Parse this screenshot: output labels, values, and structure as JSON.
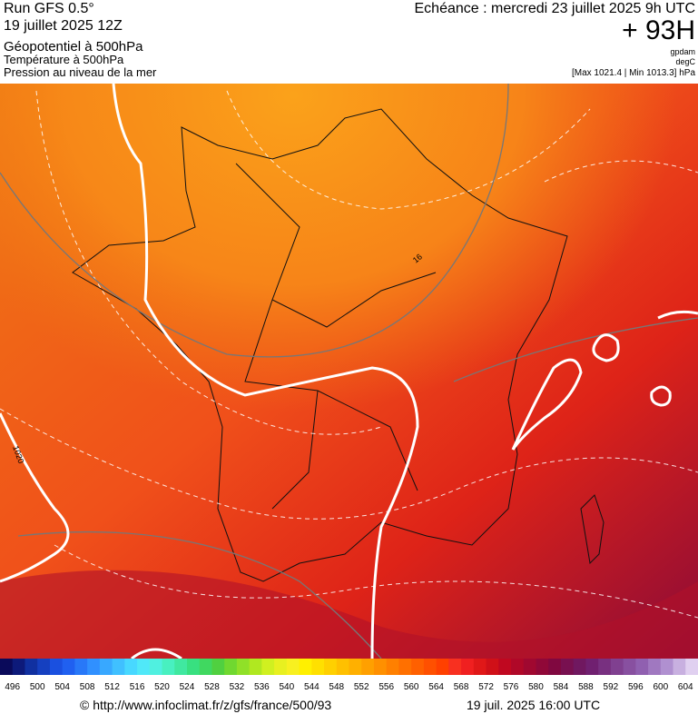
{
  "header": {
    "run": "Run GFS 0.5°",
    "date": "19 juillet 2025 12Z",
    "field1": "Géopotentiel à 500hPa",
    "field2": "Température à 500hPa",
    "field3": "Pression au niveau de la mer",
    "valid": "Echéance : mercredi 23 juillet 2025 9h UTC",
    "lead": "+ 93H",
    "unit1": "gpdam",
    "unit2": "degC",
    "range": "[Max 1021.4 | Min 1013.3] hPa"
  },
  "map": {
    "contour_labels": [
      "16",
      "1020"
    ]
  },
  "scale": {
    "labels": [
      496,
      500,
      504,
      508,
      512,
      516,
      520,
      524,
      528,
      532,
      536,
      540,
      544,
      548,
      552,
      556,
      560,
      564,
      568,
      572,
      576,
      580,
      584,
      588,
      592,
      596,
      600,
      604
    ],
    "colors": [
      "#0a0a5a",
      "#0d1a7a",
      "#1030a0",
      "#1540c0",
      "#1a50e0",
      "#2060f0",
      "#2878f8",
      "#3090ff",
      "#38a8ff",
      "#40c0ff",
      "#48d8ff",
      "#50e8f8",
      "#50f0e0",
      "#48f0c0",
      "#40e8a0",
      "#38e080",
      "#40d860",
      "#50d040",
      "#70d830",
      "#90e028",
      "#b0e820",
      "#d0f020",
      "#e8f020",
      "#f8f020",
      "#fff000",
      "#ffe000",
      "#ffd000",
      "#ffc000",
      "#ffb000",
      "#ffa000",
      "#ff9000",
      "#ff8000",
      "#ff7000",
      "#ff6000",
      "#ff5000",
      "#ff4000",
      "#f83020",
      "#f02020",
      "#e01818",
      "#d01018",
      "#c00820",
      "#b00828",
      "#a00830",
      "#900838",
      "#800840",
      "#781050",
      "#701860",
      "#702070",
      "#783080",
      "#804090",
      "#8850a0",
      "#9060b0",
      "#a078c0",
      "#b090d0",
      "#c8b0e0",
      "#e0d0f0"
    ]
  },
  "footer": {
    "url": "© http://www.infoclimat.fr/z/gfs/france/500/93",
    "generated": "19 juil. 2025 16:00 UTC"
  }
}
